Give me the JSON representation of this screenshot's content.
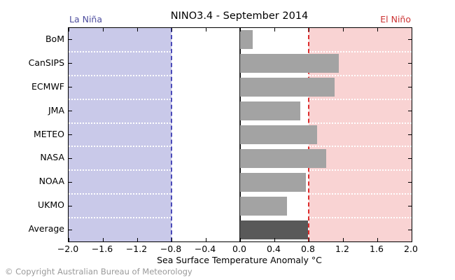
{
  "title": "NINO3.4 - September 2014",
  "regions": {
    "la_nina_label": "La Niña",
    "el_nino_label": "El Niño"
  },
  "xlabel": "Sea Surface Temperature Anomaly °C",
  "copyright": "© Copyright Australian Bureau of Meteorology",
  "chart_data": {
    "type": "bar",
    "orientation": "horizontal",
    "title": "NINO3.4 - September 2014",
    "xlabel": "Sea Surface Temperature Anomaly °C",
    "ylabel": "",
    "categories": [
      "BoM",
      "CanSIPS",
      "ECMWF",
      "JMA",
      "METEO",
      "NASA",
      "NOAA",
      "UKMO",
      "Average"
    ],
    "values": [
      0.15,
      1.15,
      1.1,
      0.7,
      0.9,
      1.0,
      0.77,
      0.55,
      0.79
    ],
    "xlim": [
      -2.0,
      2.0
    ],
    "x_ticks": [
      -2.0,
      -1.6,
      -1.2,
      -0.8,
      -0.4,
      0.0,
      0.4,
      0.8,
      1.2,
      1.6,
      2.0
    ],
    "x_tick_labels": [
      "−2.0",
      "−1.6",
      "−1.2",
      "−0.8",
      "−0.4",
      "0.0",
      "0.4",
      "0.8",
      "1.2",
      "1.6",
      "2.0"
    ],
    "thresholds": {
      "la_nina": -0.8,
      "el_nino": 0.8
    },
    "shaded_regions": [
      {
        "name": "la-nina-region",
        "from": -2.0,
        "to": -0.8
      },
      {
        "name": "el-nino-region",
        "from": 0.8,
        "to": 2.0
      }
    ],
    "legend": "none",
    "grid": "white dotted row separators",
    "colors": {
      "bar": "#a3a3a3",
      "average_bar": "#595959",
      "la_nina_region": "#c9c9e9",
      "el_nino_region": "#f9d3d3",
      "la_nina_line": "#4a4ab8",
      "el_nino_line": "#dd2c2c",
      "la_nina_text": "#4d4d9e",
      "el_nino_text": "#cc3333",
      "zero_line": "#1a1a1a"
    }
  }
}
